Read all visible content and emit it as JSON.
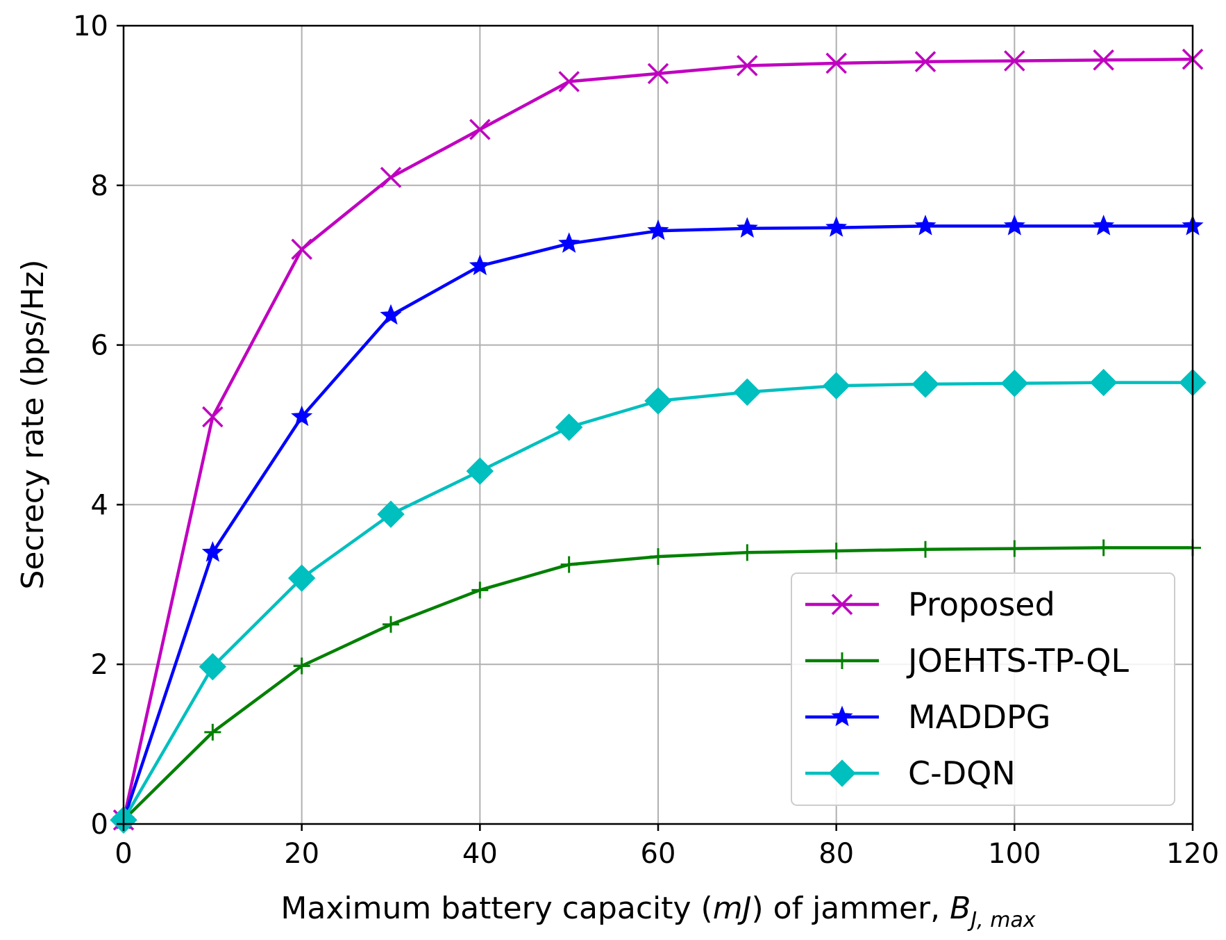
{
  "chart_data": {
    "type": "line",
    "title": "",
    "xlabel": "Maximum battery capacity (",
    "xlabel_unit": "mJ",
    "xlabel_mid": ") of jammer, ",
    "xlabel_symbol": "B",
    "xlabel_subscript": "J, max",
    "ylabel": "Secrecy rate (bps/Hz)",
    "xlim": [
      0,
      120
    ],
    "ylim": [
      0,
      10
    ],
    "xticks": [
      "0",
      "20",
      "40",
      "60",
      "80",
      "100",
      "120"
    ],
    "yticks": [
      "0",
      "2",
      "4",
      "6",
      "8",
      "10"
    ],
    "grid": true,
    "legend_position": "bottom-right",
    "x": [
      0,
      10,
      20,
      30,
      40,
      50,
      60,
      70,
      80,
      90,
      100,
      110,
      120
    ],
    "series": [
      {
        "name": "Proposed",
        "color": "#c000c0",
        "marker": "x",
        "values": [
          0.05,
          5.1,
          7.2,
          8.1,
          8.7,
          9.3,
          9.4,
          9.5,
          9.53,
          9.55,
          9.56,
          9.57,
          9.58
        ]
      },
      {
        "name": "JOEHTS-TP-QL",
        "color": "#008000",
        "marker": "plus",
        "values": [
          0.05,
          1.15,
          1.98,
          2.5,
          2.93,
          3.25,
          3.35,
          3.4,
          3.42,
          3.44,
          3.45,
          3.46,
          3.46
        ]
      },
      {
        "name": "MADDPG",
        "color": "#0000ff",
        "marker": "star",
        "values": [
          0.05,
          3.4,
          5.1,
          6.37,
          6.99,
          7.27,
          7.43,
          7.46,
          7.47,
          7.49,
          7.49,
          7.49,
          7.49
        ]
      },
      {
        "name": "C-DQN",
        "color": "#00bfbf",
        "marker": "diamond",
        "values": [
          0.05,
          1.97,
          3.08,
          3.88,
          4.42,
          4.97,
          5.3,
          5.41,
          5.49,
          5.51,
          5.52,
          5.53,
          5.53
        ]
      }
    ]
  }
}
